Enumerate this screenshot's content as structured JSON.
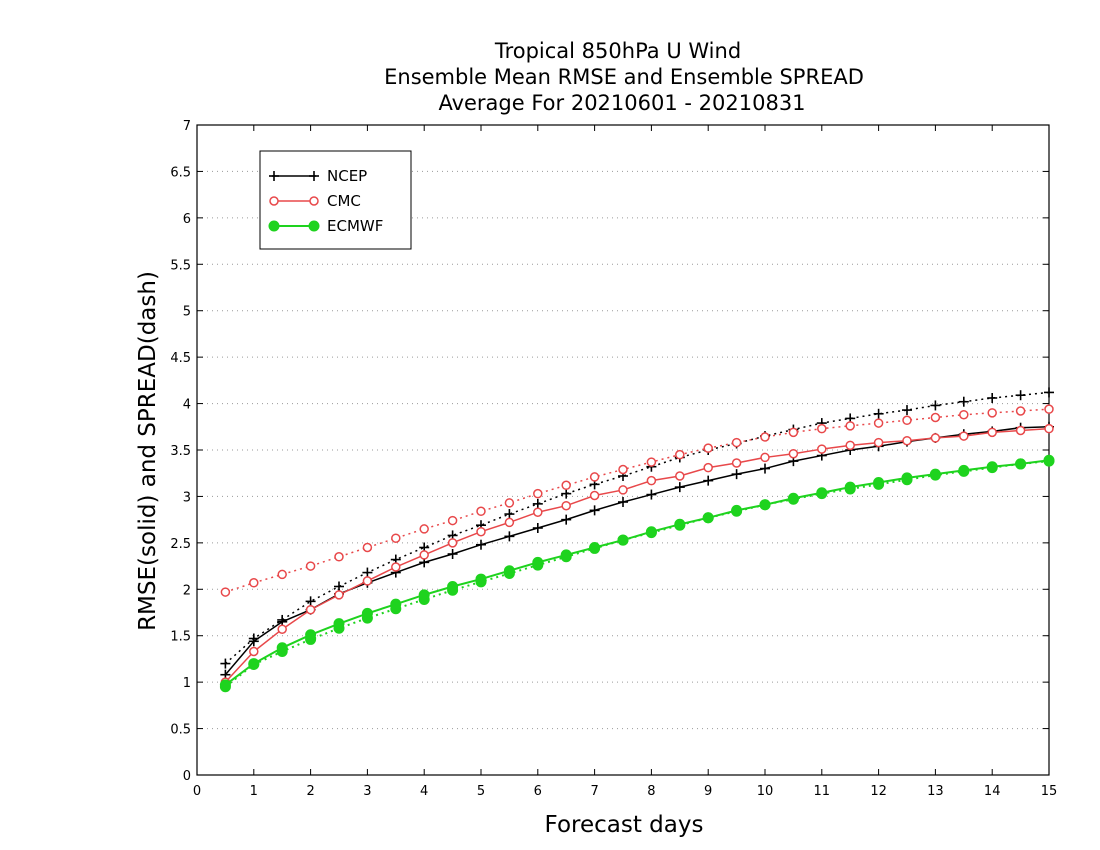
{
  "chart_data": {
    "type": "line",
    "title": [
      "Tropical 850hPa U Wind",
      "Ensemble Mean RMSE and Ensemble SPREAD",
      "Average For 20210601 - 20210831"
    ],
    "xlabel": "Forecast days",
    "ylabel": "RMSE(solid) and SPREAD(dash)",
    "xlim": [
      0,
      15
    ],
    "ylim": [
      0,
      7
    ],
    "xticks": [
      "0",
      "1",
      "2",
      "3",
      "4",
      "5",
      "6",
      "7",
      "8",
      "9",
      "10",
      "11",
      "12",
      "13",
      "14",
      "15"
    ],
    "yticks": [
      "0",
      "0.5",
      "1",
      "1.5",
      "2",
      "2.5",
      "3",
      "3.5",
      "4",
      "4.5",
      "5",
      "5.5",
      "6",
      "6.5",
      "7"
    ],
    "grid": "horizontal dotted",
    "legend_position": "top-left",
    "x": [
      0.5,
      1,
      1.5,
      2,
      2.5,
      3,
      3.5,
      4,
      4.5,
      5,
      5.5,
      6,
      6.5,
      7,
      7.5,
      8,
      8.5,
      9,
      9.5,
      10,
      10.5,
      11,
      11.5,
      12,
      12.5,
      13,
      13.5,
      14,
      14.5,
      15
    ],
    "series": [
      {
        "name": "NCEP",
        "color": "#000000",
        "marker": "plus",
        "rmse": [
          1.08,
          1.44,
          1.65,
          1.78,
          1.95,
          2.07,
          2.18,
          2.29,
          2.38,
          2.48,
          2.57,
          2.66,
          2.75,
          2.85,
          2.94,
          3.02,
          3.1,
          3.17,
          3.24,
          3.3,
          3.38,
          3.44,
          3.5,
          3.54,
          3.59,
          3.63,
          3.67,
          3.7,
          3.74,
          3.75
        ],
        "spread": [
          1.2,
          1.47,
          1.67,
          1.87,
          2.03,
          2.18,
          2.32,
          2.45,
          2.58,
          2.69,
          2.81,
          2.92,
          3.03,
          3.13,
          3.22,
          3.32,
          3.42,
          3.5,
          3.57,
          3.65,
          3.72,
          3.79,
          3.84,
          3.89,
          3.93,
          3.98,
          4.02,
          4.06,
          4.09,
          4.12
        ]
      },
      {
        "name": "CMC",
        "color": "#e8484a",
        "marker": "open-circle",
        "rmse": [
          1.0,
          1.33,
          1.57,
          1.78,
          1.94,
          2.09,
          2.24,
          2.37,
          2.5,
          2.62,
          2.72,
          2.83,
          2.9,
          3.01,
          3.07,
          3.17,
          3.22,
          3.31,
          3.36,
          3.42,
          3.46,
          3.51,
          3.55,
          3.58,
          3.6,
          3.63,
          3.65,
          3.69,
          3.71,
          3.73
        ],
        "spread": [
          1.97,
          2.07,
          2.16,
          2.25,
          2.35,
          2.45,
          2.55,
          2.65,
          2.74,
          2.84,
          2.93,
          3.03,
          3.12,
          3.21,
          3.29,
          3.37,
          3.45,
          3.52,
          3.58,
          3.64,
          3.69,
          3.73,
          3.76,
          3.79,
          3.82,
          3.85,
          3.88,
          3.9,
          3.92,
          3.94
        ]
      },
      {
        "name": "ECMWF",
        "color": "#1ed31e",
        "marker": "filled-circle",
        "rmse": [
          0.97,
          1.2,
          1.37,
          1.51,
          1.63,
          1.74,
          1.84,
          1.94,
          2.03,
          2.11,
          2.2,
          2.29,
          2.37,
          2.45,
          2.53,
          2.62,
          2.7,
          2.77,
          2.85,
          2.91,
          2.98,
          3.04,
          3.1,
          3.15,
          3.2,
          3.24,
          3.28,
          3.32,
          3.35,
          3.39
        ],
        "spread": [
          0.95,
          1.19,
          1.33,
          1.46,
          1.58,
          1.69,
          1.79,
          1.89,
          1.99,
          2.08,
          2.17,
          2.26,
          2.35,
          2.44,
          2.53,
          2.61,
          2.69,
          2.77,
          2.84,
          2.91,
          2.97,
          3.03,
          3.08,
          3.13,
          3.18,
          3.23,
          3.27,
          3.31,
          3.35,
          3.38
        ]
      }
    ]
  }
}
